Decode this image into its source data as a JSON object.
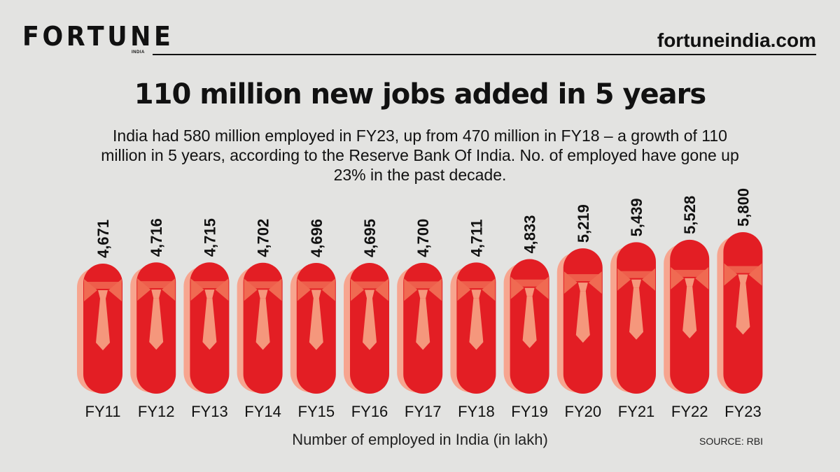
{
  "header": {
    "brand": "FORTUNE",
    "brand_sub": "INDIA",
    "site": "fortuneindia.com"
  },
  "chart_data": {
    "type": "bar",
    "title": "110 million new jobs added in 5 years",
    "subtitle": "India had 580 million employed in FY23, up from 470 million in FY18 – a growth of 110 million in 5 years, according to the Reserve Bank Of India. No. of employed have gone up 23% in the past decade.",
    "xlabel": "Number of employed in India (in lakh)",
    "ylabel": "",
    "categories": [
      "FY11",
      "FY12",
      "FY13",
      "FY14",
      "FY15",
      "FY16",
      "FY17",
      "FY18",
      "FY19",
      "FY20",
      "FY21",
      "FY22",
      "FY23"
    ],
    "values": [
      4671,
      4716,
      4715,
      4702,
      4696,
      4695,
      4700,
      4711,
      4833,
      5219,
      5439,
      5528,
      5800
    ],
    "value_labels": [
      "4,671",
      "4,716",
      "4,715",
      "4,702",
      "4,696",
      "4,695",
      "4,700",
      "4,711",
      "4,833",
      "5,219",
      "5,439",
      "5,528",
      "5,800"
    ],
    "source": "SOURCE: RBI",
    "grid": false,
    "legend": "none",
    "colors": {
      "bar": "#e31e24",
      "bar_shadow": "#f7a58f",
      "collar": "#f06a52",
      "tie": "#f5977c"
    }
  }
}
